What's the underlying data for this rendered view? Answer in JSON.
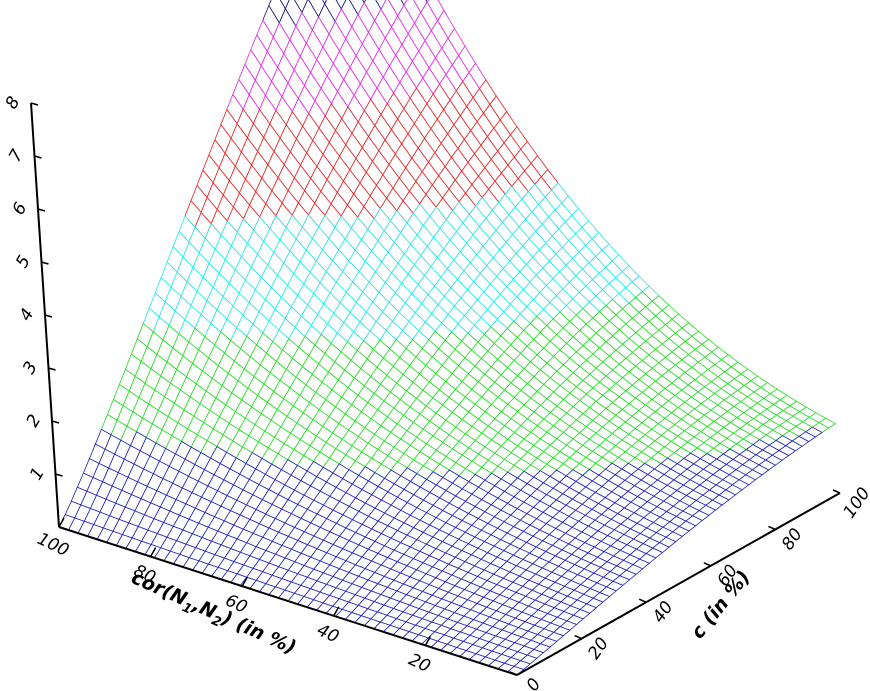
{
  "chart_data": {
    "type": "surface3d",
    "title": "",
    "x_axis": {
      "label_main": "cor(N",
      "label_sub1": "1",
      "label_mid": ",N",
      "label_sub2": "2",
      "label_end": ")  (in %)",
      "range": [
        0,
        100
      ],
      "ticks": [
        "100",
        "80",
        "60",
        "40",
        "20"
      ]
    },
    "y_axis": {
      "label": "c  (in %)",
      "range": [
        0,
        100
      ],
      "ticks": [
        "0",
        "20",
        "40",
        "60",
        "80",
        "100"
      ]
    },
    "z_axis": {
      "label": "",
      "range": [
        0,
        8
      ],
      "ticks": [
        "1",
        "2",
        "3",
        "4",
        "5",
        "6",
        "7",
        "8"
      ]
    },
    "surface_samples": [
      {
        "cor": 100,
        "c": 0,
        "z": 0.0
      },
      {
        "cor": 100,
        "c": 50,
        "z": 2.0
      },
      {
        "cor": 100,
        "c": 100,
        "z": 7.7
      },
      {
        "cor": 50,
        "c": 0,
        "z": 0.0
      },
      {
        "cor": 50,
        "c": 50,
        "z": 2.5
      },
      {
        "cor": 50,
        "c": 100,
        "z": 4.0
      },
      {
        "cor": 0,
        "c": 0,
        "z": 0.0
      },
      {
        "cor": 0,
        "c": 50,
        "z": 0.8
      },
      {
        "cor": 0,
        "c": 100,
        "z": 1.0
      }
    ],
    "color_bands": [
      {
        "from": 0,
        "to": 1.3,
        "color": "#2222bb"
      },
      {
        "from": 1.3,
        "to": 2.7,
        "color": "#22dd22"
      },
      {
        "from": 2.7,
        "to": 4.2,
        "color": "#22e8e8"
      },
      {
        "from": 4.2,
        "to": 5.7,
        "color": "#e82222"
      },
      {
        "from": 5.7,
        "to": 7.0,
        "color": "#e822e8"
      },
      {
        "from": 7.0,
        "to": 8.0,
        "color": "#111177"
      }
    ]
  }
}
